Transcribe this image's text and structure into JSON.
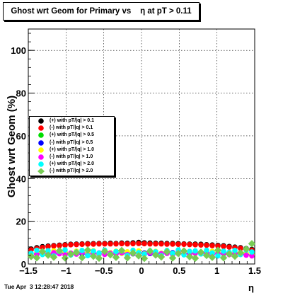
{
  "title": "Ghost wrt Geom for Primary vs    η at pT > 0.11",
  "timestamp": "Tue Apr  3 12:28:47 2018",
  "chart_data": {
    "type": "scatter",
    "xlabel": "η",
    "ylabel": "Ghost wrt Geom (%)",
    "xlim": [
      -1.5,
      1.5
    ],
    "ylim": [
      0,
      110
    ],
    "xticks": [
      -1.5,
      -1,
      -0.5,
      0,
      0.5,
      1,
      1.5
    ],
    "xtick_labels": [
      "−1.5",
      "−1",
      "−0.5",
      "0",
      "0.5",
      "1",
      "1.5"
    ],
    "yticks": [
      0,
      20,
      40,
      60,
      80,
      100
    ],
    "ytick_labels": [
      "0",
      "20",
      "40",
      "60",
      "80",
      "100"
    ],
    "grid": true,
    "legend_position": "middle-left",
    "series": [
      {
        "name": "(+) with pT/|q| > 0.1",
        "color": "#000000",
        "marker": "circle",
        "values": [
          7.0,
          7.6,
          8.1,
          8.4,
          8.6,
          8.8,
          9.0,
          9.2,
          9.3,
          9.4,
          9.5,
          9.5,
          9.6,
          9.6,
          9.7,
          9.6,
          9.8,
          9.7,
          9.9,
          10.1,
          9.9,
          9.8,
          9.7,
          9.7,
          9.6,
          9.6,
          9.5,
          9.4,
          9.3,
          9.3,
          9.2,
          9.0,
          8.9,
          8.7,
          8.5,
          8.2,
          7.9,
          7.6,
          7.2,
          6.8
        ]
      },
      {
        "name": "(-) with pT/|q| > 0.1",
        "color": "#ff0000",
        "marker": "circle",
        "values": [
          6.6,
          7.2,
          7.7,
          8.1,
          8.4,
          8.6,
          8.8,
          9.0,
          9.1,
          9.2,
          9.3,
          9.3,
          9.4,
          9.4,
          9.4,
          9.4,
          9.5,
          9.4,
          9.5,
          9.6,
          9.5,
          9.4,
          9.4,
          9.4,
          9.3,
          9.3,
          9.2,
          9.2,
          9.1,
          9.0,
          8.9,
          8.8,
          8.6,
          8.4,
          8.2,
          7.9,
          7.6,
          7.3,
          6.9,
          6.4
        ]
      },
      {
        "name": "(+) with pT/|q| > 0.5",
        "color": "#00dd00",
        "marker": "circle",
        "values": [
          3.8,
          4.6,
          5.1,
          4.8,
          5.2,
          4.9,
          5.3,
          4.7,
          5.0,
          5.5,
          4.6,
          5.1,
          4.9,
          5.4,
          4.8,
          5.2,
          5.0,
          4.7,
          5.3,
          5.1,
          4.9,
          5.2,
          4.8,
          5.0,
          5.4,
          4.7,
          5.1,
          4.9,
          5.3,
          5.0,
          4.8,
          5.2,
          4.6,
          5.1,
          4.9,
          5.3,
          4.7,
          5.0,
          4.4,
          4.1
        ]
      },
      {
        "name": "(-) with pT/|q| > 0.5",
        "color": "#0000ff",
        "marker": "circle",
        "values": [
          4.0,
          4.9,
          5.2,
          5.0,
          4.8,
          5.4,
          5.1,
          4.9,
          5.3,
          4.8,
          5.2,
          5.0,
          4.7,
          5.3,
          5.1,
          4.9,
          5.2,
          5.0,
          4.8,
          5.4,
          5.1,
          4.9,
          5.2,
          4.7,
          5.0,
          5.3,
          4.9,
          5.1,
          4.8,
          5.2,
          5.0,
          4.9,
          5.3,
          4.8,
          5.1,
          4.9,
          5.0,
          4.7,
          4.5,
          4.2
        ]
      },
      {
        "name": "(+) with pT/|q| > 1.0",
        "color": "#ffff00",
        "marker": "circle",
        "values": [
          4.2,
          5.5,
          5.8,
          4.9,
          6.1,
          5.2,
          5.7,
          4.8,
          6.0,
          5.4,
          5.1,
          6.2,
          4.9,
          5.6,
          5.3,
          6.0,
          5.0,
          5.7,
          5.2,
          6.1,
          4.8,
          5.5,
          5.9,
          5.0,
          5.6,
          4.9,
          6.0,
          5.3,
          5.8,
          5.1,
          5.6,
          4.9,
          5.9,
          5.2,
          5.5,
          4.8,
          5.7,
          5.0,
          5.3,
          4.5
        ]
      },
      {
        "name": "(-) with pT/|q| > 1.0",
        "color": "#ff00ff",
        "marker": "circle",
        "values": [
          3.6,
          4.4,
          5.0,
          4.5,
          5.3,
          4.8,
          4.3,
          5.1,
          4.6,
          5.4,
          4.2,
          4.9,
          5.2,
          4.5,
          5.0,
          4.7,
          5.3,
          4.4,
          4.9,
          5.1,
          4.6,
          5.2,
          4.3,
          4.8,
          5.0,
          4.5,
          5.4,
          4.7,
          4.2,
          5.1,
          4.8,
          5.3,
          4.5,
          4.9,
          5.2,
          4.4,
          5.0,
          4.6,
          4.1,
          3.8
        ]
      },
      {
        "name": "(+) with pT/|q| > 2.0",
        "color": "#00ffff",
        "marker": "circle",
        "values": [
          5.0,
          6.4,
          4.4,
          6.2,
          3.8,
          5.9,
          6.6,
          4.2,
          5.6,
          6.3,
          3.9,
          6.0,
          5.1,
          6.5,
          4.5,
          5.8,
          6.1,
          4.0,
          6.4,
          5.3,
          4.6,
          6.2,
          5.7,
          3.9,
          6.3,
          5.0,
          6.6,
          4.3,
          5.9,
          6.1,
          4.7,
          6.4,
          5.2,
          3.8,
          6.0,
          5.5,
          6.3,
          4.4,
          6.5,
          5.6
        ]
      },
      {
        "name": "(-) with pT/|q| > 2.0",
        "color": "#77cc55",
        "marker": "diamond",
        "values": [
          3.5,
          2.9,
          5.8,
          4.1,
          3.2,
          6.2,
          2.8,
          4.6,
          5.4,
          3.0,
          6.5,
          3.6,
          2.7,
          5.9,
          4.3,
          3.1,
          6.3,
          2.9,
          5.1,
          3.8,
          2.6,
          6.0,
          4.2,
          3.3,
          5.7,
          2.8,
          4.9,
          6.1,
          3.4,
          2.7,
          5.5,
          4.0,
          3.1,
          6.4,
          2.9,
          4.7,
          3.6,
          5.2,
          7.0,
          9.5
        ]
      }
    ]
  }
}
